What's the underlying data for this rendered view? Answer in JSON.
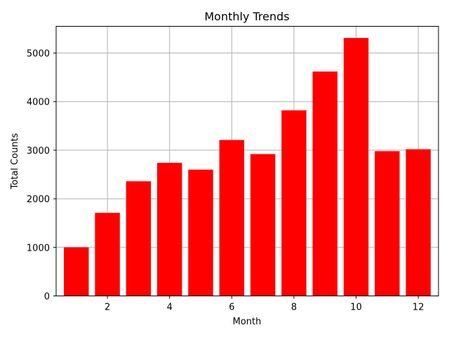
{
  "chart_data": {
    "type": "bar",
    "title": "Monthly Trends",
    "xlabel": "Month",
    "ylabel": "Total Counts",
    "x": [
      1,
      2,
      3,
      4,
      5,
      6,
      7,
      8,
      9,
      10,
      11,
      12
    ],
    "values": [
      1000,
      1710,
      2360,
      2740,
      2600,
      3210,
      2920,
      3820,
      4620,
      5310,
      2980,
      3020
    ],
    "xlim": [
      0.35,
      12.65
    ],
    "ylim": [
      0,
      5550
    ],
    "xticks": [
      2,
      4,
      6,
      8,
      10,
      12
    ],
    "yticks": [
      0,
      1000,
      2000,
      3000,
      4000,
      5000
    ],
    "grid": true,
    "bar_color": "#ff0000",
    "grid_color": "#b0b0b0"
  }
}
